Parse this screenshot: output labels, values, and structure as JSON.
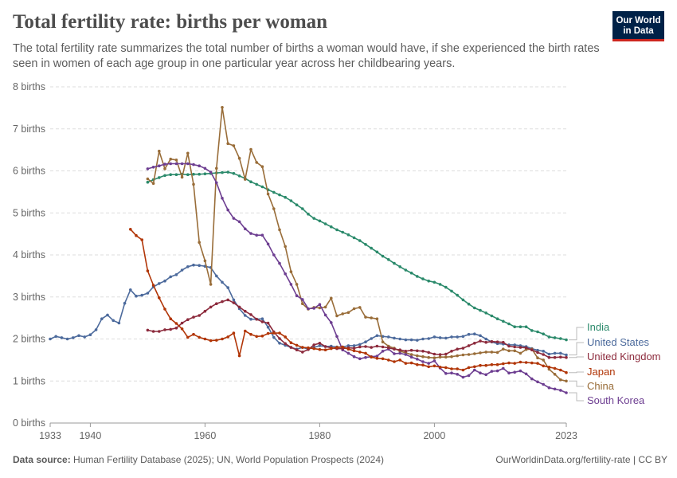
{
  "header": {
    "title": "Total fertility rate: births per woman",
    "subtitle": "The total fertility rate summarizes the total number of births a woman would have, if she experienced the birth rates seen in women of each age group in one particular year across her childbearing years.",
    "logo_line1": "Our World",
    "logo_line2": "in Data"
  },
  "footer": {
    "source_label": "Data source:",
    "source_text": "Human Fertility Database (2025); UN, World Population Prospects (2024)",
    "right_text": "OurWorldinData.org/fertility-rate | CC BY"
  },
  "colors": {
    "India": "#2b8a6b",
    "United States": "#4c6a9c",
    "United Kingdom": "#8c2a3c",
    "Japan": "#b13507",
    "China": "#996d39",
    "South Korea": "#6d3e91"
  },
  "chart_data": {
    "type": "line",
    "title": "Total fertility rate: births per woman",
    "xlim": [
      1933,
      2023
    ],
    "ylim": [
      0,
      8
    ],
    "x_ticks": [
      "1933",
      "1940",
      "1960",
      "1980",
      "2000",
      "2023"
    ],
    "x_tick_values": [
      1933,
      1940,
      1960,
      1980,
      2000,
      2023
    ],
    "y_ticks": [
      "0 births",
      "1 births",
      "2 births",
      "3 births",
      "4 births",
      "5 births",
      "6 births",
      "7 births",
      "8 births"
    ],
    "y_tick_values": [
      0,
      1,
      2,
      3,
      4,
      5,
      6,
      7,
      8
    ],
    "grid": true,
    "legend": "right end labels",
    "series": [
      {
        "name": "United States",
        "x": [
          1933,
          1934,
          1935,
          1936,
          1937,
          1938,
          1939,
          1940,
          1941,
          1942,
          1943,
          1944,
          1945,
          1946,
          1947,
          1948,
          1949,
          1950,
          1951,
          1952,
          1953,
          1954,
          1955,
          1956,
          1957,
          1958,
          1959,
          1960,
          1961,
          1962,
          1963,
          1964,
          1965,
          1966,
          1967,
          1968,
          1969,
          1970,
          1971,
          1972,
          1973,
          1974,
          1975,
          1976,
          1977,
          1978,
          1979,
          1980,
          1981,
          1982,
          1983,
          1984,
          1985,
          1986,
          1987,
          1988,
          1989,
          1990,
          1991,
          1992,
          1993,
          1994,
          1995,
          1996,
          1997,
          1998,
          1999,
          2000,
          2001,
          2002,
          2003,
          2004,
          2005,
          2006,
          2007,
          2008,
          2009,
          2010,
          2011,
          2012,
          2013,
          2014,
          2015,
          2016,
          2017,
          2018,
          2019,
          2020,
          2021,
          2022,
          2023
        ],
        "y": [
          2.0,
          2.06,
          2.03,
          2.0,
          2.03,
          2.08,
          2.05,
          2.1,
          2.22,
          2.48,
          2.57,
          2.44,
          2.38,
          2.85,
          3.17,
          3.02,
          3.04,
          3.09,
          3.24,
          3.32,
          3.38,
          3.48,
          3.53,
          3.64,
          3.72,
          3.76,
          3.75,
          3.73,
          3.7,
          3.5,
          3.35,
          3.22,
          2.93,
          2.72,
          2.56,
          2.47,
          2.47,
          2.48,
          2.28,
          2.04,
          1.9,
          1.85,
          1.8,
          1.76,
          1.8,
          1.76,
          1.8,
          1.84,
          1.82,
          1.83,
          1.81,
          1.81,
          1.84,
          1.84,
          1.87,
          1.93,
          2.01,
          2.08,
          2.06,
          2.05,
          2.02,
          2.0,
          1.98,
          1.98,
          1.97,
          2.0,
          2.01,
          2.05,
          2.03,
          2.02,
          2.05,
          2.05,
          2.06,
          2.11,
          2.12,
          2.08,
          2.0,
          1.93,
          1.89,
          1.88,
          1.86,
          1.86,
          1.84,
          1.82,
          1.77,
          1.73,
          1.71,
          1.64,
          1.66,
          1.66,
          1.62
        ]
      },
      {
        "name": "India",
        "x": [
          1950,
          1951,
          1952,
          1953,
          1954,
          1955,
          1956,
          1957,
          1958,
          1959,
          1960,
          1961,
          1962,
          1963,
          1964,
          1965,
          1966,
          1967,
          1968,
          1969,
          1970,
          1971,
          1972,
          1973,
          1974,
          1975,
          1976,
          1977,
          1978,
          1979,
          1980,
          1981,
          1982,
          1983,
          1984,
          1985,
          1986,
          1987,
          1988,
          1989,
          1990,
          1991,
          1992,
          1993,
          1994,
          1995,
          1996,
          1997,
          1998,
          1999,
          2000,
          2001,
          2002,
          2003,
          2004,
          2005,
          2006,
          2007,
          2008,
          2009,
          2010,
          2011,
          2012,
          2013,
          2014,
          2015,
          2016,
          2017,
          2018,
          2019,
          2020,
          2021,
          2022,
          2023
        ],
        "y": [
          5.73,
          5.79,
          5.84,
          5.89,
          5.91,
          5.91,
          5.92,
          5.91,
          5.92,
          5.92,
          5.93,
          5.94,
          5.95,
          5.96,
          5.97,
          5.94,
          5.88,
          5.82,
          5.74,
          5.68,
          5.62,
          5.55,
          5.49,
          5.43,
          5.37,
          5.29,
          5.19,
          5.1,
          4.97,
          4.87,
          4.81,
          4.74,
          4.67,
          4.6,
          4.54,
          4.48,
          4.41,
          4.34,
          4.25,
          4.16,
          4.07,
          3.97,
          3.89,
          3.8,
          3.72,
          3.64,
          3.57,
          3.49,
          3.43,
          3.38,
          3.35,
          3.3,
          3.23,
          3.14,
          3.04,
          2.93,
          2.83,
          2.74,
          2.68,
          2.62,
          2.55,
          2.48,
          2.42,
          2.36,
          2.29,
          2.29,
          2.29,
          2.2,
          2.17,
          2.12,
          2.05,
          2.03,
          2.01,
          1.98
        ]
      },
      {
        "name": "China",
        "x": [
          1950,
          1951,
          1952,
          1953,
          1954,
          1955,
          1956,
          1957,
          1958,
          1959,
          1960,
          1961,
          1962,
          1963,
          1964,
          1965,
          1966,
          1967,
          1968,
          1969,
          1970,
          1971,
          1972,
          1973,
          1974,
          1975,
          1976,
          1977,
          1978,
          1979,
          1980,
          1981,
          1982,
          1983,
          1984,
          1985,
          1986,
          1987,
          1988,
          1989,
          1990,
          1991,
          1992,
          1993,
          1994,
          1995,
          1996,
          1997,
          1998,
          1999,
          2000,
          2001,
          2002,
          2003,
          2004,
          2005,
          2006,
          2007,
          2008,
          2009,
          2010,
          2011,
          2012,
          2013,
          2014,
          2015,
          2016,
          2017,
          2018,
          2019,
          2020,
          2021,
          2022,
          2023
        ],
        "y": [
          5.81,
          5.7,
          6.47,
          6.05,
          6.28,
          6.26,
          5.85,
          6.42,
          5.68,
          4.3,
          3.86,
          3.3,
          6.06,
          7.51,
          6.65,
          6.6,
          6.3,
          5.8,
          6.51,
          6.2,
          6.1,
          5.45,
          5.1,
          4.6,
          4.2,
          3.6,
          3.3,
          2.84,
          2.71,
          2.75,
          2.74,
          2.76,
          2.97,
          2.55,
          2.6,
          2.63,
          2.72,
          2.75,
          2.52,
          2.5,
          2.48,
          1.93,
          1.83,
          1.78,
          1.71,
          1.67,
          1.63,
          1.6,
          1.58,
          1.56,
          1.55,
          1.57,
          1.57,
          1.58,
          1.6,
          1.62,
          1.63,
          1.65,
          1.67,
          1.69,
          1.69,
          1.68,
          1.76,
          1.72,
          1.72,
          1.66,
          1.75,
          1.76,
          1.55,
          1.5,
          1.28,
          1.16,
          1.03,
          1.0
        ]
      },
      {
        "name": "South Korea",
        "x": [
          1950,
          1951,
          1952,
          1953,
          1954,
          1955,
          1956,
          1957,
          1958,
          1959,
          1960,
          1961,
          1962,
          1963,
          1964,
          1965,
          1966,
          1967,
          1968,
          1969,
          1970,
          1971,
          1972,
          1973,
          1974,
          1975,
          1976,
          1977,
          1978,
          1979,
          1980,
          1981,
          1982,
          1983,
          1984,
          1985,
          1986,
          1987,
          1988,
          1989,
          1990,
          1991,
          1992,
          1993,
          1994,
          1995,
          1996,
          1997,
          1998,
          1999,
          2000,
          2001,
          2002,
          2003,
          2004,
          2005,
          2006,
          2007,
          2008,
          2009,
          2010,
          2011,
          2012,
          2013,
          2014,
          2015,
          2016,
          2017,
          2018,
          2019,
          2020,
          2021,
          2022,
          2023
        ],
        "y": [
          6.05,
          6.09,
          6.12,
          6.16,
          6.17,
          6.17,
          6.17,
          6.17,
          6.15,
          6.12,
          6.06,
          5.97,
          5.72,
          5.35,
          5.07,
          4.87,
          4.79,
          4.62,
          4.51,
          4.47,
          4.47,
          4.26,
          4.0,
          3.8,
          3.55,
          3.3,
          3.03,
          2.94,
          2.72,
          2.73,
          2.82,
          2.57,
          2.39,
          2.06,
          1.74,
          1.66,
          1.58,
          1.53,
          1.56,
          1.58,
          1.59,
          1.71,
          1.76,
          1.65,
          1.66,
          1.63,
          1.57,
          1.52,
          1.46,
          1.42,
          1.48,
          1.31,
          1.18,
          1.19,
          1.16,
          1.09,
          1.13,
          1.26,
          1.19,
          1.15,
          1.23,
          1.24,
          1.3,
          1.19,
          1.21,
          1.24,
          1.17,
          1.05,
          0.98,
          0.92,
          0.84,
          0.81,
          0.78,
          0.72
        ]
      },
      {
        "name": "United Kingdom",
        "x": [
          1950,
          1951,
          1952,
          1953,
          1954,
          1955,
          1956,
          1957,
          1958,
          1959,
          1960,
          1961,
          1962,
          1963,
          1964,
          1965,
          1966,
          1967,
          1968,
          1969,
          1970,
          1971,
          1972,
          1973,
          1974,
          1975,
          1976,
          1977,
          1978,
          1979,
          1980,
          1981,
          1982,
          1983,
          1984,
          1985,
          1986,
          1987,
          1988,
          1989,
          1990,
          1991,
          1992,
          1993,
          1994,
          1995,
          1996,
          1997,
          1998,
          1999,
          2000,
          2001,
          2002,
          2003,
          2004,
          2005,
          2006,
          2007,
          2008,
          2009,
          2010,
          2011,
          2012,
          2013,
          2014,
          2015,
          2016,
          2017,
          2018,
          2019,
          2020,
          2021,
          2022,
          2023
        ],
        "y": [
          2.21,
          2.18,
          2.18,
          2.22,
          2.23,
          2.26,
          2.38,
          2.46,
          2.52,
          2.56,
          2.66,
          2.76,
          2.84,
          2.89,
          2.93,
          2.86,
          2.76,
          2.66,
          2.58,
          2.47,
          2.41,
          2.38,
          2.17,
          2.01,
          1.89,
          1.8,
          1.74,
          1.69,
          1.75,
          1.86,
          1.9,
          1.82,
          1.79,
          1.77,
          1.77,
          1.79,
          1.78,
          1.81,
          1.82,
          1.8,
          1.83,
          1.81,
          1.79,
          1.76,
          1.74,
          1.71,
          1.73,
          1.72,
          1.71,
          1.68,
          1.64,
          1.63,
          1.64,
          1.71,
          1.76,
          1.78,
          1.84,
          1.9,
          1.95,
          1.92,
          1.94,
          1.93,
          1.92,
          1.83,
          1.81,
          1.8,
          1.79,
          1.74,
          1.68,
          1.63,
          1.56,
          1.56,
          1.57,
          1.56
        ]
      },
      {
        "name": "Japan",
        "x": [
          1947,
          1948,
          1949,
          1950,
          1951,
          1952,
          1953,
          1954,
          1955,
          1956,
          1957,
          1958,
          1959,
          1960,
          1961,
          1962,
          1963,
          1964,
          1965,
          1966,
          1967,
          1968,
          1969,
          1970,
          1971,
          1972,
          1973,
          1974,
          1975,
          1976,
          1977,
          1978,
          1979,
          1980,
          1981,
          1982,
          1983,
          1984,
          1985,
          1986,
          1987,
          1988,
          1989,
          1990,
          1991,
          1992,
          1993,
          1994,
          1995,
          1996,
          1997,
          1998,
          1999,
          2000,
          2001,
          2002,
          2003,
          2004,
          2005,
          2006,
          2007,
          2008,
          2009,
          2010,
          2011,
          2012,
          2013,
          2014,
          2015,
          2016,
          2017,
          2018,
          2019,
          2020,
          2021,
          2022,
          2023
        ],
        "y": [
          4.61,
          4.46,
          4.36,
          3.62,
          3.28,
          2.98,
          2.71,
          2.48,
          2.37,
          2.24,
          2.04,
          2.11,
          2.04,
          2.0,
          1.96,
          1.97,
          2.0,
          2.05,
          2.14,
          1.6,
          2.19,
          2.11,
          2.06,
          2.07,
          2.13,
          2.14,
          2.14,
          2.05,
          1.91,
          1.85,
          1.8,
          1.79,
          1.77,
          1.75,
          1.74,
          1.77,
          1.8,
          1.81,
          1.76,
          1.72,
          1.69,
          1.66,
          1.57,
          1.54,
          1.53,
          1.5,
          1.46,
          1.5,
          1.42,
          1.43,
          1.39,
          1.38,
          1.34,
          1.36,
          1.33,
          1.32,
          1.29,
          1.29,
          1.26,
          1.32,
          1.34,
          1.37,
          1.37,
          1.39,
          1.39,
          1.41,
          1.43,
          1.42,
          1.45,
          1.44,
          1.43,
          1.42,
          1.36,
          1.33,
          1.3,
          1.26,
          1.2
        ]
      }
    ]
  }
}
